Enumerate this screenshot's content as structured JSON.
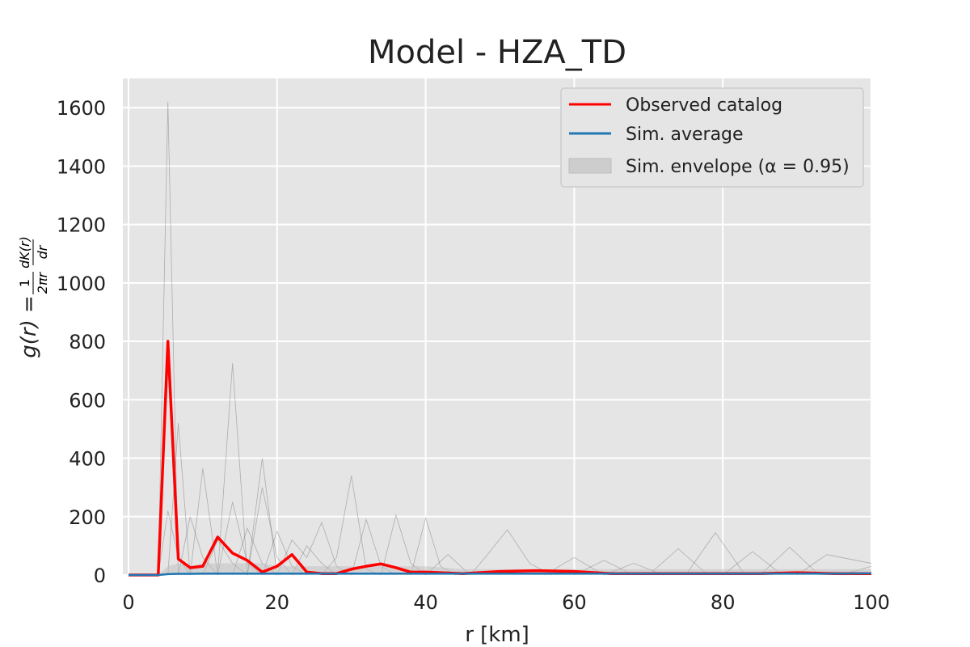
{
  "chart_data": {
    "type": "line",
    "title": "Model - HZA_TD",
    "xlabel": "r  [km]",
    "ylabel": "g(r) = (1/2πr) dK(r)/dr",
    "xlim": [
      0,
      100
    ],
    "ylim": [
      0,
      1700
    ],
    "xticks": [
      0,
      20,
      40,
      60,
      80,
      100
    ],
    "yticks": [
      0,
      200,
      400,
      600,
      800,
      1000,
      1200,
      1400,
      1600
    ],
    "grid": true,
    "legend_position": "top-right",
    "legend": [
      "Observed catalog",
      "Sim. average",
      "Sim. envelope (α = 0.95)"
    ],
    "x": [
      0,
      2,
      4,
      5.3,
      6.7,
      8.3,
      10,
      12,
      14,
      16,
      18,
      20,
      22,
      24,
      26,
      28,
      30,
      32,
      34,
      36,
      38,
      40,
      45,
      50,
      55,
      60,
      65,
      70,
      75,
      80,
      85,
      90,
      95,
      100
    ],
    "series": [
      {
        "name": "Observed catalog",
        "color": "#ff0000",
        "values": [
          0,
          0,
          0,
          800,
          55,
          25,
          30,
          130,
          75,
          50,
          10,
          30,
          70,
          10,
          5,
          5,
          20,
          30,
          38,
          25,
          10,
          10,
          5,
          12,
          15,
          12,
          5,
          5,
          5,
          5,
          5,
          8,
          5,
          5
        ]
      },
      {
        "name": "Sim. average",
        "color": "#1f77b4",
        "values": [
          0,
          0,
          0,
          3,
          4,
          4,
          5,
          5,
          5,
          5,
          5,
          5,
          5,
          5,
          5,
          5,
          5,
          5,
          5,
          5,
          5,
          5,
          5,
          5,
          5,
          5,
          5,
          5,
          5,
          5,
          5,
          5,
          5,
          6
        ]
      },
      {
        "name": "Sim. envelope (α = 0.95)",
        "color": "#888888",
        "lower": [
          0,
          0,
          0,
          0,
          0,
          0,
          0,
          0,
          0,
          0,
          0,
          0,
          0,
          0,
          0,
          0,
          0,
          0,
          0,
          0,
          0,
          0,
          0,
          0,
          0,
          0,
          0,
          0,
          0,
          0,
          0,
          0,
          0,
          0
        ],
        "upper": [
          0,
          0,
          0,
          30,
          40,
          30,
          40,
          40,
          40,
          40,
          40,
          30,
          30,
          30,
          30,
          30,
          30,
          30,
          30,
          30,
          30,
          30,
          20,
          20,
          20,
          20,
          20,
          20,
          20,
          20,
          20,
          20,
          20,
          20
        ]
      }
    ]
  },
  "simulation_traces": [
    [
      [
        4,
        0
      ],
      [
        5.3,
        1620
      ],
      [
        6.7,
        0
      ]
    ],
    [
      [
        5.3,
        0
      ],
      [
        6.7,
        520
      ],
      [
        8.3,
        0
      ]
    ],
    [
      [
        4,
        0
      ],
      [
        5.3,
        220
      ],
      [
        6.7,
        60
      ],
      [
        8.3,
        0
      ]
    ],
    [
      [
        8.3,
        0
      ],
      [
        10,
        365
      ],
      [
        12,
        0
      ]
    ],
    [
      [
        12,
        0
      ],
      [
        14,
        725
      ],
      [
        16,
        0
      ]
    ],
    [
      [
        12,
        0
      ],
      [
        14,
        250
      ],
      [
        16,
        40
      ],
      [
        18,
        0
      ]
    ],
    [
      [
        16,
        0
      ],
      [
        18,
        400
      ],
      [
        20,
        0
      ]
    ],
    [
      [
        16,
        0
      ],
      [
        18,
        300
      ],
      [
        20,
        60
      ],
      [
        22,
        0
      ]
    ],
    [
      [
        18,
        0
      ],
      [
        20,
        150
      ],
      [
        22,
        30
      ],
      [
        24,
        0
      ]
    ],
    [
      [
        26,
        0
      ],
      [
        28,
        60
      ],
      [
        30,
        340
      ],
      [
        32,
        20
      ],
      [
        34,
        0
      ]
    ],
    [
      [
        30,
        0
      ],
      [
        32,
        190
      ],
      [
        34,
        30
      ],
      [
        36,
        0
      ]
    ],
    [
      [
        34,
        0
      ],
      [
        36,
        205
      ],
      [
        38,
        40
      ],
      [
        40,
        0
      ]
    ],
    [
      [
        38,
        0
      ],
      [
        40,
        195
      ],
      [
        42,
        30
      ],
      [
        44,
        0
      ]
    ],
    [
      [
        20,
        0
      ],
      [
        22,
        120
      ],
      [
        24,
        60
      ],
      [
        26,
        180
      ],
      [
        28,
        30
      ],
      [
        30,
        0
      ]
    ],
    [
      [
        46,
        0
      ],
      [
        48,
        60
      ],
      [
        51,
        155
      ],
      [
        54,
        40
      ],
      [
        57,
        0
      ]
    ],
    [
      [
        56,
        0
      ],
      [
        60,
        60
      ],
      [
        64,
        0
      ]
    ],
    [
      [
        70,
        0
      ],
      [
        74,
        90
      ],
      [
        78,
        0
      ]
    ],
    [
      [
        75,
        0
      ],
      [
        79,
        145
      ],
      [
        83,
        0
      ]
    ],
    [
      [
        80,
        0
      ],
      [
        84,
        80
      ],
      [
        88,
        0
      ]
    ],
    [
      [
        85,
        0
      ],
      [
        89,
        95
      ],
      [
        93,
        0
      ]
    ],
    [
      [
        90,
        0
      ],
      [
        94,
        70
      ],
      [
        100,
        40
      ]
    ],
    [
      [
        6.7,
        0
      ],
      [
        8.3,
        200
      ],
      [
        10,
        60
      ],
      [
        12,
        0
      ]
    ],
    [
      [
        10,
        0
      ],
      [
        12,
        120
      ],
      [
        14,
        40
      ],
      [
        16,
        0
      ]
    ],
    [
      [
        14,
        0
      ],
      [
        16,
        160
      ],
      [
        18,
        40
      ],
      [
        20,
        0
      ]
    ],
    [
      [
        22,
        0
      ],
      [
        24,
        100
      ],
      [
        26,
        40
      ],
      [
        28,
        0
      ]
    ],
    [
      [
        40,
        0
      ],
      [
        43,
        70
      ],
      [
        46,
        0
      ]
    ],
    [
      [
        60,
        0
      ],
      [
        64,
        50
      ],
      [
        68,
        0
      ]
    ],
    [
      [
        64,
        0
      ],
      [
        68,
        40
      ],
      [
        72,
        0
      ]
    ],
    [
      [
        96,
        0
      ],
      [
        100,
        30
      ]
    ]
  ]
}
